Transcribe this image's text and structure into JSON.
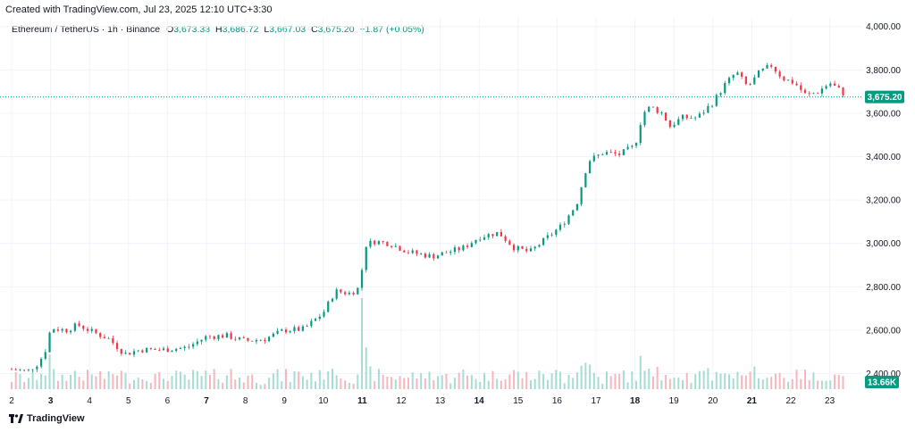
{
  "header": {
    "created_text": "Created with TradingView.com, Jul 23, 2025 12:10 UTC+3:30"
  },
  "legend": {
    "symbol": "Ethereum / TetherUS · 1h · Binance",
    "o_label": "O",
    "o_value": "3,673.33",
    "h_label": "H",
    "h_value": "3,686.72",
    "l_label": "L",
    "l_value": "3,667.03",
    "c_label": "C",
    "c_value": "3,675.20",
    "change": "+1.87 (+0.05%)"
  },
  "footer": {
    "brand": "TradingView"
  },
  "colors": {
    "up": "#089981",
    "down": "#f23645",
    "up_vol": "#a7dcd3",
    "down_vol": "#f7b6bc",
    "grid": "#f0f3fa",
    "axis_text": "#131722"
  },
  "chart_data": {
    "type": "candlestick",
    "interval": "1h",
    "ylim": [
      2320,
      4040
    ],
    "y_ticks": [
      "2,400.00",
      "2,600.00",
      "2,800.00",
      "3,000.00",
      "3,200.00",
      "3,400.00",
      "3,600.00",
      "3,800.00",
      "4,000.00"
    ],
    "y_tick_values": [
      2400,
      2600,
      2800,
      3000,
      3200,
      3400,
      3600,
      3800,
      4000
    ],
    "x_ticks": [
      "2",
      "3",
      "4",
      "5",
      "6",
      "7",
      "8",
      "9",
      "10",
      "11",
      "12",
      "13",
      "14",
      "15",
      "16",
      "17",
      "18",
      "19",
      "20",
      "21",
      "22",
      "23"
    ],
    "x_ticks_bold": [
      "3",
      "7",
      "11",
      "14",
      "18",
      "21"
    ],
    "last_price": 3675.2,
    "last_price_label": "3,675.20",
    "volume_label": "13.66K",
    "price_path": [
      [
        2.0,
        2420
      ],
      [
        2.4,
        2410
      ],
      [
        2.7,
        2450
      ],
      [
        2.9,
        2520
      ],
      [
        3.0,
        2610
      ],
      [
        3.4,
        2600
      ],
      [
        3.7,
        2625
      ],
      [
        4.1,
        2590
      ],
      [
        4.5,
        2560
      ],
      [
        4.9,
        2490
      ],
      [
        5.3,
        2510
      ],
      [
        5.9,
        2510
      ],
      [
        6.5,
        2520
      ],
      [
        7.0,
        2570
      ],
      [
        7.5,
        2575
      ],
      [
        8.0,
        2550
      ],
      [
        8.5,
        2560
      ],
      [
        9.0,
        2600
      ],
      [
        9.5,
        2605
      ],
      [
        10.0,
        2680
      ],
      [
        10.3,
        2780
      ],
      [
        10.7,
        2770
      ],
      [
        10.95,
        2800
      ],
      [
        11.05,
        2990
      ],
      [
        11.3,
        3010
      ],
      [
        11.7,
        3000
      ],
      [
        12.2,
        2960
      ],
      [
        12.8,
        2940
      ],
      [
        13.2,
        2960
      ],
      [
        13.6,
        2980
      ],
      [
        14.0,
        3030
      ],
      [
        14.5,
        3050
      ],
      [
        14.9,
        2980
      ],
      [
        15.3,
        2960
      ],
      [
        15.7,
        3020
      ],
      [
        16.1,
        3080
      ],
      [
        16.5,
        3180
      ],
      [
        16.8,
        3380
      ],
      [
        17.2,
        3420
      ],
      [
        17.6,
        3410
      ],
      [
        18.0,
        3450
      ],
      [
        18.2,
        3600
      ],
      [
        18.4,
        3630
      ],
      [
        18.7,
        3600
      ],
      [
        18.9,
        3540
      ],
      [
        19.2,
        3580
      ],
      [
        19.6,
        3580
      ],
      [
        20.0,
        3650
      ],
      [
        20.3,
        3730
      ],
      [
        20.6,
        3790
      ],
      [
        20.9,
        3720
      ],
      [
        21.2,
        3790
      ],
      [
        21.5,
        3820
      ],
      [
        21.8,
        3760
      ],
      [
        22.1,
        3740
      ],
      [
        22.4,
        3680
      ],
      [
        22.7,
        3700
      ],
      [
        23.0,
        3740
      ],
      [
        23.3,
        3700
      ],
      [
        23.45,
        3675
      ]
    ]
  }
}
